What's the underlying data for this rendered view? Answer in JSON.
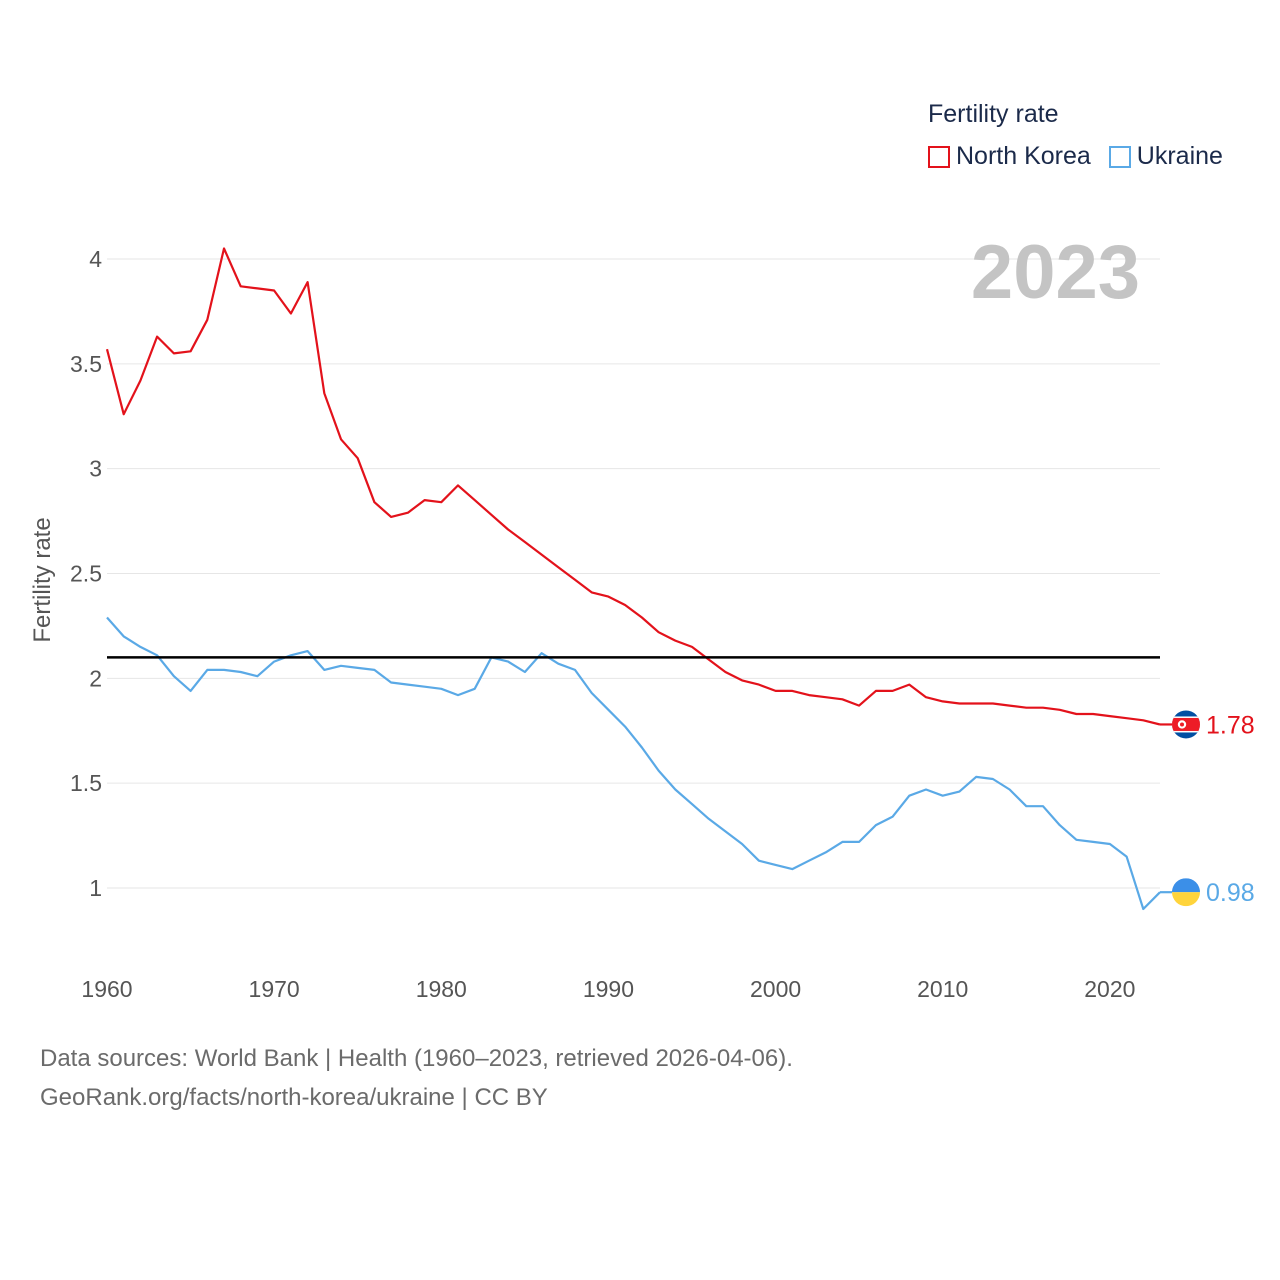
{
  "legend": {
    "title": "Fertility rate",
    "items": [
      {
        "name": "North Korea",
        "color": "#e3121b"
      },
      {
        "name": "Ukraine",
        "color": "#5aa9e6"
      }
    ]
  },
  "footer": {
    "line1": "Data sources: World Bank | Health (1960–2023, retrieved 2026-04-06).",
    "line2": "GeoRank.org/facts/north-korea/ukraine | CC BY"
  },
  "chart_data": {
    "type": "line",
    "title": "Fertility rate",
    "ylabel": "Fertility rate",
    "xlabel": "",
    "year_label": "2023",
    "xlim": [
      1960,
      2023
    ],
    "ylim": [
      0.75,
      4.15
    ],
    "x_ticks": [
      1960,
      1970,
      1980,
      1990,
      2000,
      2010,
      2020
    ],
    "y_ticks": [
      1,
      1.5,
      2,
      2.5,
      3,
      3.5,
      4
    ],
    "y_tick_labels": [
      "1",
      "1.5",
      "2",
      "2.5",
      "3",
      "3.5",
      "4"
    ],
    "reference_line": {
      "y": 2.1,
      "color": "#000000"
    },
    "x": [
      1960,
      1961,
      1962,
      1963,
      1964,
      1965,
      1966,
      1967,
      1968,
      1969,
      1970,
      1971,
      1972,
      1973,
      1974,
      1975,
      1976,
      1977,
      1978,
      1979,
      1980,
      1981,
      1982,
      1983,
      1984,
      1985,
      1986,
      1987,
      1988,
      1989,
      1990,
      1991,
      1992,
      1993,
      1994,
      1995,
      1996,
      1997,
      1998,
      1999,
      2000,
      2001,
      2002,
      2003,
      2004,
      2005,
      2006,
      2007,
      2008,
      2009,
      2010,
      2011,
      2012,
      2013,
      2014,
      2015,
      2016,
      2017,
      2018,
      2019,
      2020,
      2021,
      2022,
      2023
    ],
    "series": [
      {
        "name": "North Korea",
        "color": "#e3121b",
        "end_label": "1.78",
        "values": [
          3.57,
          3.26,
          3.42,
          3.63,
          3.55,
          3.56,
          3.71,
          4.05,
          3.87,
          3.86,
          3.85,
          3.74,
          3.89,
          3.36,
          3.14,
          3.05,
          2.84,
          2.77,
          2.79,
          2.85,
          2.84,
          2.92,
          2.85,
          2.78,
          2.71,
          2.65,
          2.59,
          2.53,
          2.47,
          2.41,
          2.39,
          2.35,
          2.29,
          2.22,
          2.18,
          2.15,
          2.09,
          2.03,
          1.99,
          1.97,
          1.94,
          1.94,
          1.92,
          1.91,
          1.9,
          1.87,
          1.94,
          1.94,
          1.97,
          1.91,
          1.89,
          1.88,
          1.88,
          1.88,
          1.87,
          1.86,
          1.86,
          1.85,
          1.83,
          1.83,
          1.82,
          1.81,
          1.8,
          1.78
        ]
      },
      {
        "name": "Ukraine",
        "color": "#5aa9e6",
        "end_label": "0.98",
        "values": [
          2.29,
          2.2,
          2.15,
          2.11,
          2.01,
          1.94,
          2.04,
          2.04,
          2.03,
          2.01,
          2.08,
          2.11,
          2.13,
          2.04,
          2.06,
          2.05,
          2.04,
          1.98,
          1.97,
          1.96,
          1.95,
          1.92,
          1.95,
          2.1,
          2.08,
          2.03,
          2.12,
          2.07,
          2.04,
          1.93,
          1.85,
          1.77,
          1.67,
          1.56,
          1.47,
          1.4,
          1.33,
          1.27,
          1.21,
          1.13,
          1.11,
          1.09,
          1.13,
          1.17,
          1.22,
          1.22,
          1.3,
          1.34,
          1.44,
          1.47,
          1.44,
          1.46,
          1.53,
          1.52,
          1.47,
          1.39,
          1.39,
          1.3,
          1.23,
          1.22,
          1.21,
          1.15,
          0.9,
          0.98
        ]
      }
    ]
  }
}
